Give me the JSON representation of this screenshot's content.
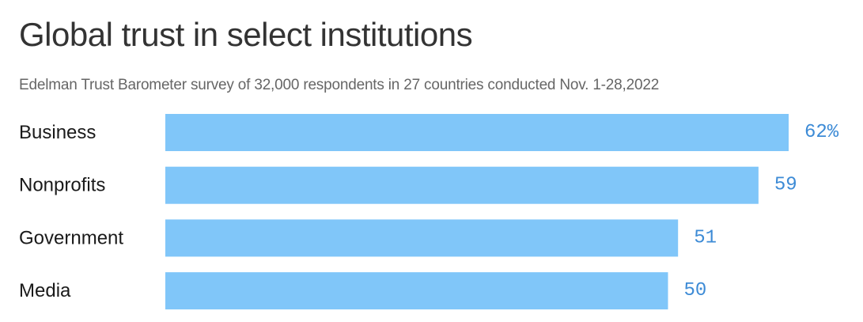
{
  "title": "Global trust in select institutions",
  "subtitle": "Edelman Trust Barometer survey of 32,000 respondents in 27 countries conducted Nov. 1-28,2022",
  "colors": {
    "bar": "#80c6f9",
    "value_label": "#3d8bd6",
    "title": "#333333",
    "subtitle": "#666666"
  },
  "chart_data": {
    "type": "bar",
    "orientation": "horizontal",
    "title": "Global trust in select institutions",
    "subtitle": "Edelman Trust Barometer survey of 32,000 respondents in 27 countries conducted Nov. 1-28,2022",
    "categories": [
      "Business",
      "Nonprofits",
      "Government",
      "Media"
    ],
    "values": [
      62,
      59,
      51,
      50
    ],
    "value_labels": [
      "62%",
      "59",
      "51",
      "50"
    ],
    "xlabel": "",
    "ylabel": "",
    "xlim": [
      0,
      62
    ],
    "grid": false,
    "legend": "none"
  }
}
